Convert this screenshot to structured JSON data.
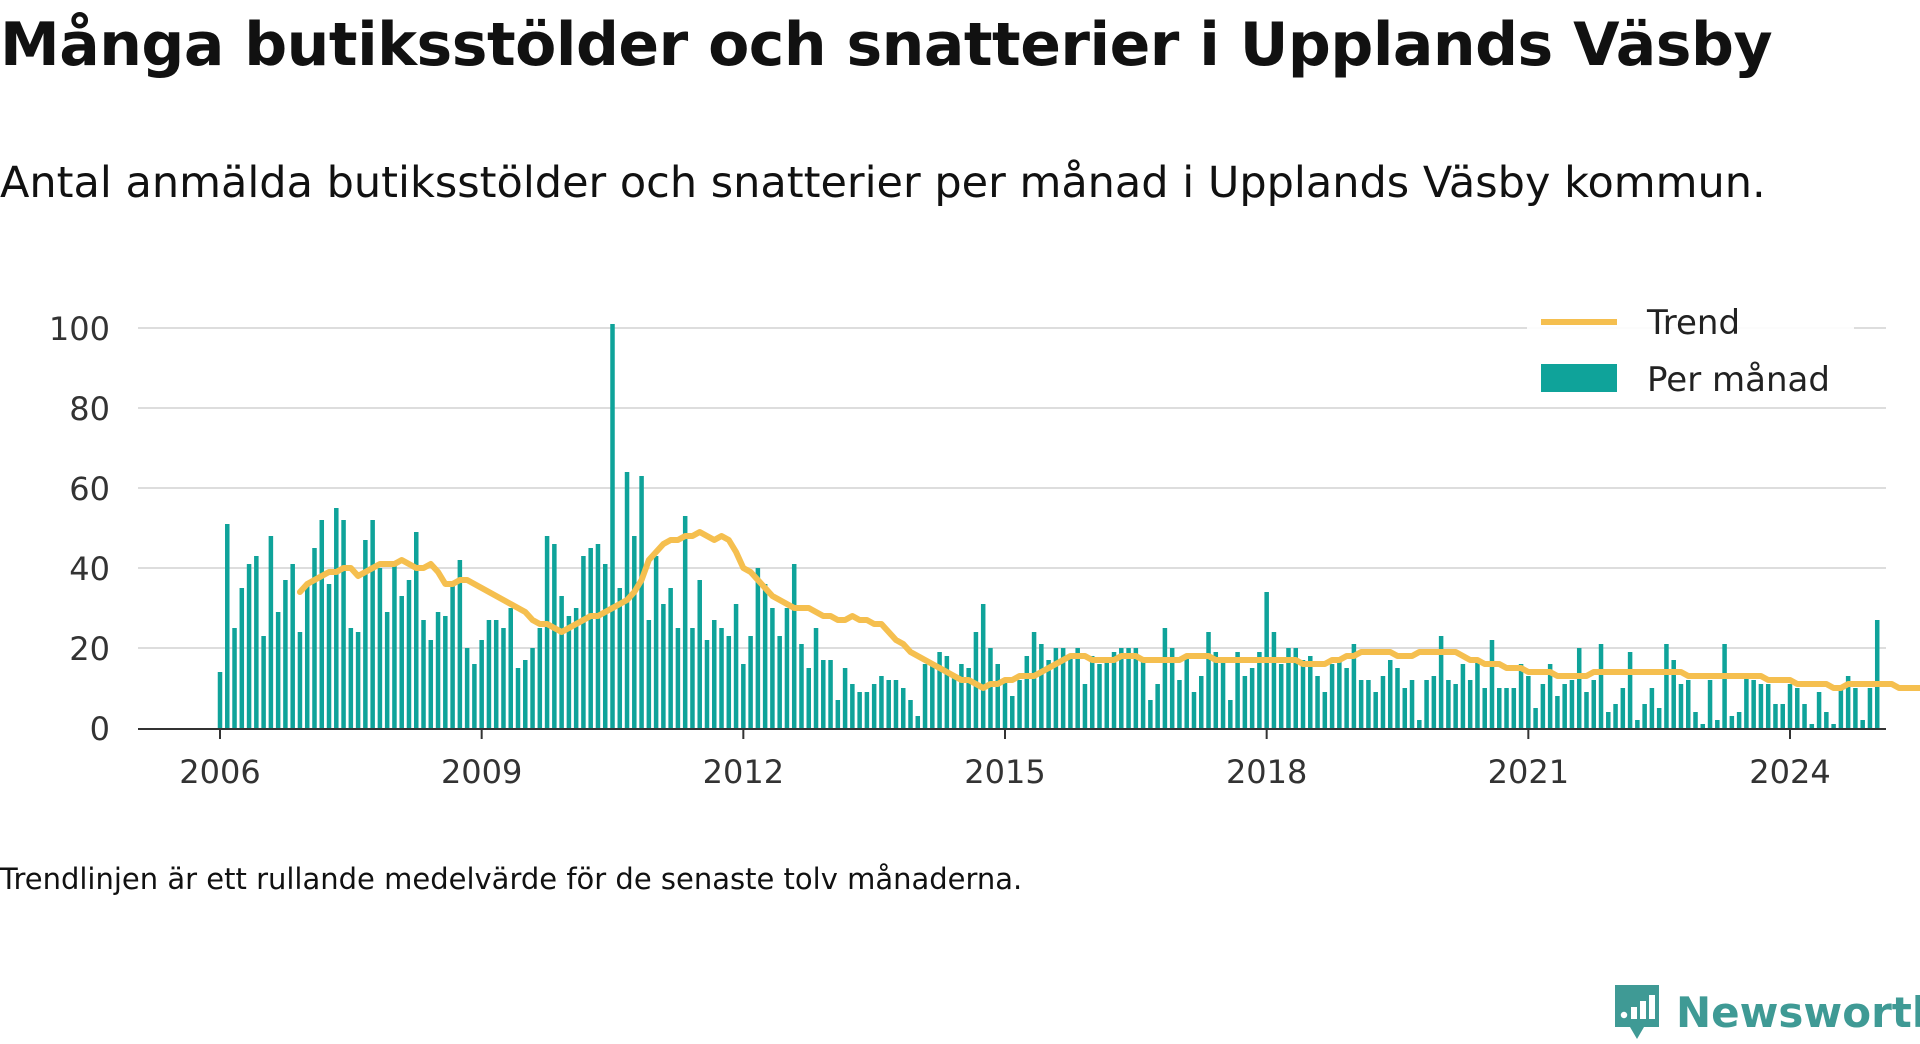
{
  "title": "Många butiksstölder och snatterier i Upplands Väsby",
  "subtitle": "Antal anmälda butiksstölder och snatterier per månad i Upplands Väsby kommun.",
  "footnote": "Trendlinjen är ett rullande medelvärde för de senaste tolv månaderna.",
  "brand": {
    "name": "Newsworthy",
    "icon": "newsworthy-logo-icon"
  },
  "colors": {
    "bars": "#0fa39a",
    "trend": "#f5bf4f",
    "grid": "#dddddd",
    "axis": "#333333",
    "text": "#111111"
  },
  "chart_data": {
    "type": "bar",
    "title": "Många butiksstölder och snatterier i Upplands Väsby",
    "xlabel": "",
    "ylabel": "",
    "ylim": [
      0,
      100
    ],
    "yticks": [
      0,
      20,
      40,
      60,
      80,
      100
    ],
    "xticks": [
      "2006",
      "2009",
      "2012",
      "2015",
      "2018",
      "2021",
      "2024"
    ],
    "grid": true,
    "legend": {
      "position": "top-right",
      "entries": [
        "Trend",
        "Per månad"
      ]
    },
    "start": "2006-01",
    "series": [
      {
        "name": "Per månad",
        "type": "bar",
        "values": [
          14,
          51,
          25,
          35,
          41,
          43,
          23,
          48,
          29,
          37,
          41,
          24,
          36,
          45,
          52,
          36,
          55,
          52,
          25,
          24,
          47,
          52,
          40,
          29,
          41,
          33,
          37,
          49,
          27,
          22,
          29,
          28,
          36,
          42,
          20,
          16,
          22,
          27,
          27,
          25,
          30,
          15,
          17,
          20,
          25,
          48,
          46,
          33,
          28,
          30,
          43,
          45,
          46,
          41,
          101,
          35,
          64,
          48,
          63,
          27,
          43,
          31,
          35,
          25,
          53,
          25,
          37,
          22,
          27,
          25,
          23,
          31,
          16,
          23,
          40,
          36,
          30,
          23,
          30,
          41,
          21,
          15,
          25,
          17,
          17,
          7,
          15,
          11,
          9,
          9,
          11,
          13,
          12,
          12,
          10,
          7,
          3,
          16,
          16,
          19,
          18,
          13,
          16,
          15,
          24,
          31,
          20,
          16,
          12,
          8,
          12,
          18,
          24,
          21,
          17,
          20,
          20,
          18,
          20,
          11,
          18,
          16,
          17,
          19,
          20,
          20,
          20,
          17,
          7,
          11,
          25,
          20,
          12,
          18,
          9,
          13,
          24,
          19,
          17,
          7,
          19,
          13,
          15,
          19,
          34,
          24,
          16,
          20,
          20,
          17,
          18,
          13,
          9,
          16,
          17,
          15,
          21,
          12,
          12,
          9,
          13,
          17,
          15,
          10,
          12,
          2,
          12,
          13,
          23,
          12,
          11,
          16,
          12,
          17,
          10,
          22,
          10,
          10,
          10,
          16,
          13,
          5,
          11,
          16,
          8,
          11,
          12,
          20,
          9,
          12,
          21,
          4,
          6,
          10,
          19,
          2,
          6,
          10,
          5,
          21,
          17,
          11,
          12,
          4,
          1,
          12,
          2,
          21,
          3,
          4,
          13,
          12,
          11,
          11,
          6,
          6,
          11,
          10,
          6,
          1,
          9,
          4,
          1,
          10,
          13,
          10,
          2,
          10,
          27
        ],
        "color": "#0fa39a"
      },
      {
        "name": "Trend",
        "type": "line",
        "start": "2006-12",
        "values": [
          34,
          36,
          37,
          38,
          39,
          39,
          40,
          40,
          38,
          39,
          40,
          41,
          41,
          41,
          42,
          41,
          40,
          40,
          41,
          39,
          36,
          36,
          37,
          37,
          36,
          35,
          34,
          33,
          32,
          31,
          30,
          29,
          27,
          26,
          26,
          25,
          24,
          25,
          26,
          27,
          28,
          28,
          29,
          30,
          31,
          32,
          34,
          37,
          42,
          44,
          46,
          47,
          47,
          48,
          48,
          49,
          48,
          47,
          48,
          47,
          44,
          40,
          39,
          37,
          35,
          33,
          32,
          31,
          30,
          30,
          30,
          29,
          28,
          28,
          27,
          27,
          28,
          27,
          27,
          26,
          26,
          24,
          22,
          21,
          19,
          18,
          17,
          16,
          15,
          14,
          13,
          12,
          12,
          11,
          10,
          11,
          11,
          12,
          12,
          13,
          13,
          13,
          14,
          15,
          16,
          17,
          18,
          18,
          18,
          17,
          17,
          17,
          17,
          18,
          18,
          18,
          17,
          17,
          17,
          17,
          17,
          17,
          18,
          18,
          18,
          18,
          17,
          17,
          17,
          17,
          17,
          17,
          17,
          17,
          17,
          17,
          17,
          17,
          16,
          16,
          16,
          16,
          17,
          17,
          18,
          18,
          19,
          19,
          19,
          19,
          19,
          18,
          18,
          18,
          19,
          19,
          19,
          19,
          19,
          19,
          18,
          17,
          17,
          16,
          16,
          16,
          15,
          15,
          15,
          14,
          14,
          14,
          14,
          13,
          13,
          13,
          13,
          13,
          14,
          14,
          14,
          14,
          14,
          14,
          14,
          14,
          14,
          14,
          14,
          14,
          14,
          13,
          13,
          13,
          13,
          13,
          13,
          13,
          13,
          13,
          13,
          13,
          12,
          12,
          12,
          12,
          11,
          11,
          11,
          11,
          11,
          10,
          10,
          11,
          11,
          11,
          11,
          11,
          11,
          11,
          10,
          10,
          10,
          10,
          10,
          10,
          9,
          9,
          9,
          10,
          10,
          11
        ]
      }
    ]
  }
}
